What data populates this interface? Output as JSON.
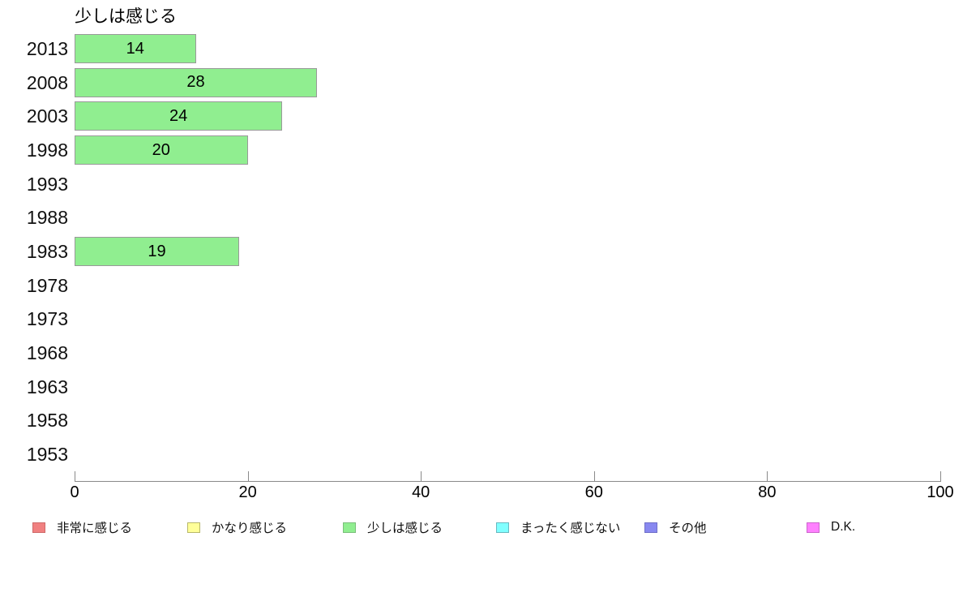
{
  "chart_data": {
    "type": "bar",
    "orientation": "horizontal",
    "title": "少しは感じる",
    "categories": [
      "2013",
      "2008",
      "2003",
      "1998",
      "1993",
      "1988",
      "1983",
      "1978",
      "1973",
      "1968",
      "1963",
      "1958",
      "1953"
    ],
    "values": [
      14,
      28,
      24,
      20,
      null,
      null,
      19,
      null,
      null,
      null,
      null,
      null,
      null
    ],
    "value_labels_shown": true,
    "xlabel": "",
    "ylabel": "",
    "xlim": [
      0,
      100
    ],
    "x_ticks": [
      0,
      20,
      40,
      60,
      80,
      100
    ],
    "grid": false,
    "bar_fill": "#90ee90",
    "bar_border": "#999999",
    "axis_color": "#8a8a8a",
    "legend_position": "bottom",
    "legend": [
      {
        "label": "非常に感じる",
        "fill": "#f08080",
        "border": "#cf6a6a"
      },
      {
        "label": "かなり感じる",
        "fill": "#ffff99",
        "border": "#b8b86a"
      },
      {
        "label": "少しは感じる",
        "fill": "#90ee90",
        "border": "#7bbf7b"
      },
      {
        "label": "まったく感じない",
        "fill": "#80ffff",
        "border": "#6ab8c0"
      },
      {
        "label": "その他",
        "fill": "#8888f0",
        "border": "#6f6fc8"
      },
      {
        "label": "D.K.",
        "fill": "#ff80ff",
        "border": "#cc66cc"
      }
    ]
  }
}
